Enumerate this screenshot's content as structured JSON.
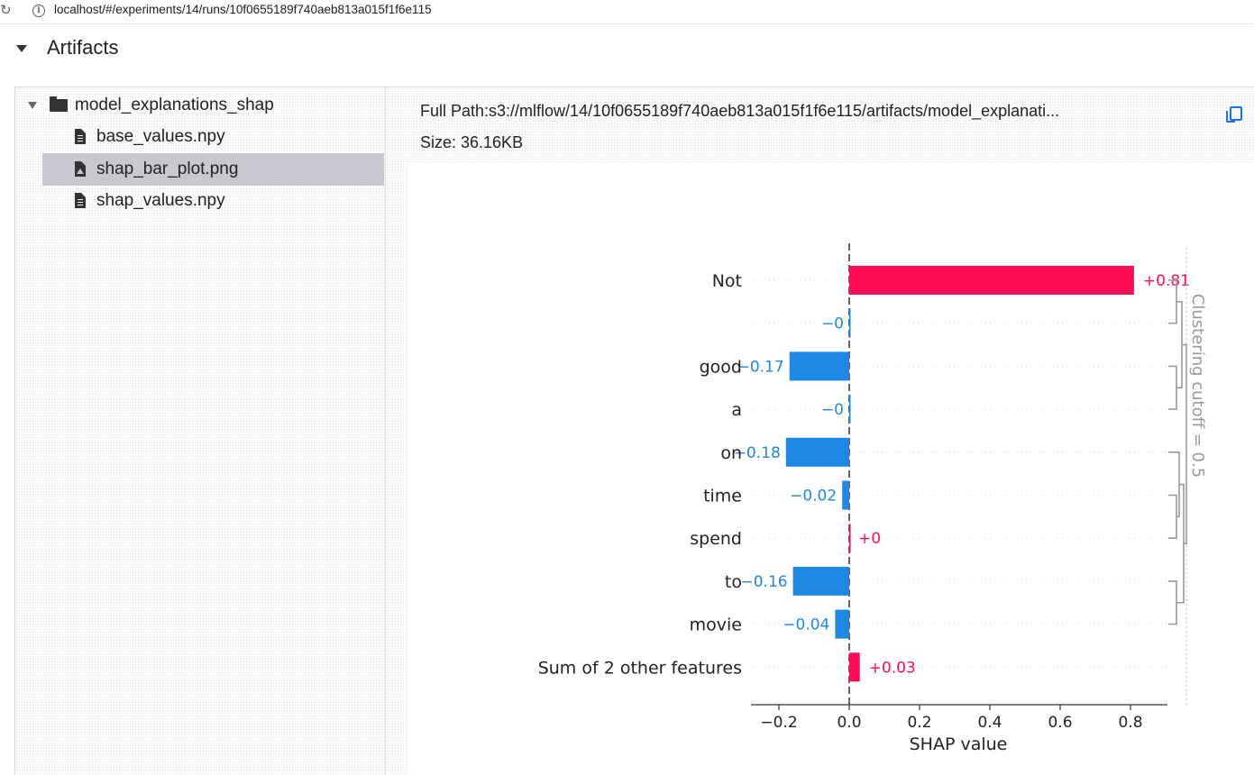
{
  "browser": {
    "url": "localhost/#/experiments/14/runs/10f0655189f740aeb813a015f1f6e115"
  },
  "section": {
    "title": "Artifacts"
  },
  "tree": {
    "folder": "model_explanations_shap",
    "files": [
      {
        "name": "base_values.npy",
        "icon": "file-icon",
        "selected": false
      },
      {
        "name": "shap_bar_plot.png",
        "icon": "image-file-icon",
        "selected": true
      },
      {
        "name": "shap_values.npy",
        "icon": "file-icon",
        "selected": false
      }
    ]
  },
  "details": {
    "full_path": "Full Path:s3://mlflow/14/10f0655189f740aeb813a015f1f6e115/artifacts/model_explanati...",
    "size": "Size: 36.16KB"
  },
  "chart_data": {
    "type": "bar",
    "orientation": "horizontal",
    "categories": [
      "Not",
      "",
      "good",
      "a",
      "on",
      "time",
      "spend",
      "to",
      "movie",
      "Sum of 2 other features"
    ],
    "values": [
      0.81,
      -0.0,
      -0.17,
      -0.0,
      -0.18,
      -0.02,
      0.0,
      -0.16,
      -0.04,
      0.03
    ],
    "value_labels": [
      "+0.81",
      "−0",
      "−0.17",
      "−0",
      "−0.18",
      "−0.02",
      "+0",
      "−0.16",
      "−0.04",
      "+0.03"
    ],
    "xlabel": "SHAP value",
    "xticks": [
      "−0.2",
      "0.0",
      "0.2",
      "0.4",
      "0.6",
      "0.8"
    ],
    "xtick_values": [
      -0.2,
      0.0,
      0.2,
      0.4,
      0.6,
      0.8
    ],
    "xlim": [
      -0.28,
      0.92
    ],
    "annotation": "Clustering cutoff = 0.5",
    "colors": {
      "positive": "#ff0d57",
      "negative": "#1e88e5",
      "dendrogram": "#999999"
    }
  }
}
